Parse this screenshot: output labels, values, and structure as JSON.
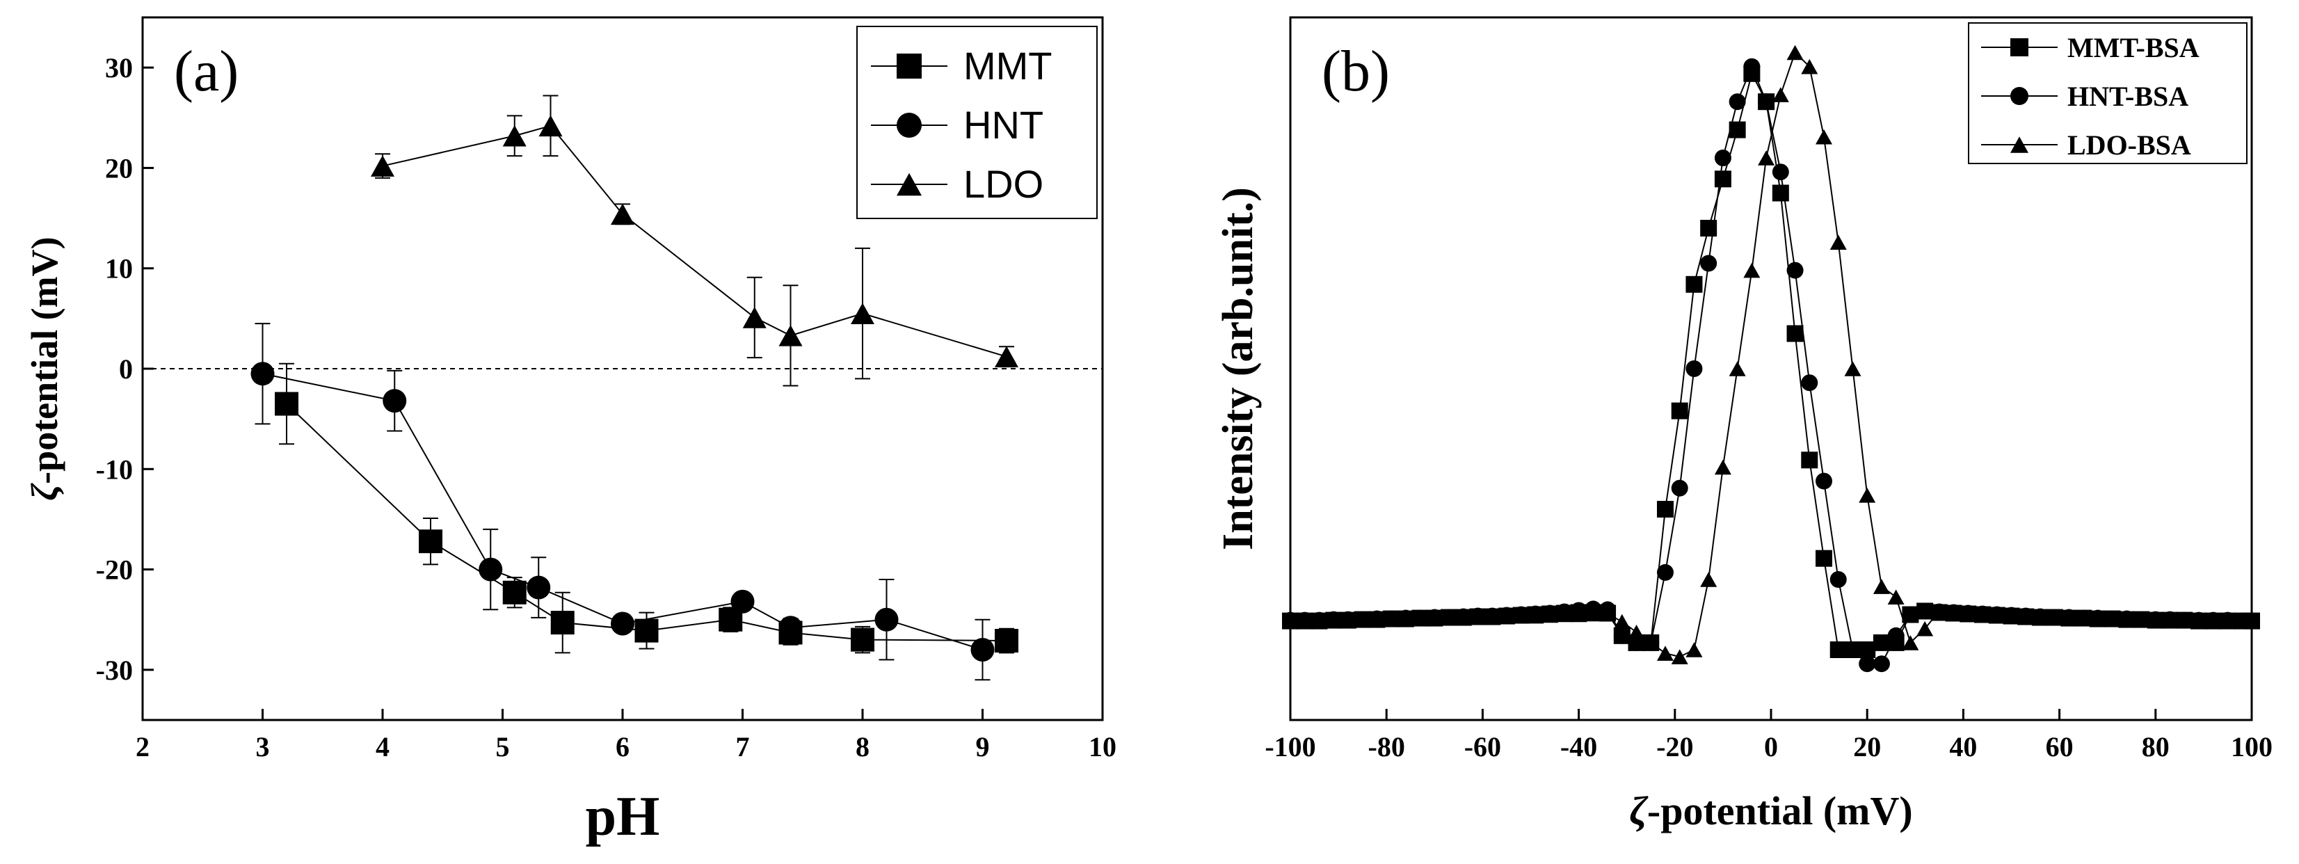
{
  "chart_data": [
    {
      "type": "line",
      "panel_label": "(a)",
      "xlabel": "pH",
      "ylabel_symbol": "ζ",
      "ylabel_text": "-potential (mV)",
      "xlim": [
        2,
        10
      ],
      "ylim": [
        -35,
        35
      ],
      "xticks": [
        2,
        3,
        4,
        5,
        6,
        7,
        8,
        9,
        10
      ],
      "yticks": [
        -30,
        -20,
        -10,
        0,
        10,
        20,
        30
      ],
      "zero_line": true,
      "legend": "top-right",
      "series": [
        {
          "name": "MMT",
          "marker": "square",
          "x": [
            3.2,
            4.4,
            5.1,
            5.5,
            6.2,
            6.9,
            7.4,
            8.0,
            9.2
          ],
          "y": [
            -3.5,
            -17.2,
            -22.3,
            -25.3,
            -26.1,
            -25.0,
            -26.3,
            -27.0,
            -27.1
          ],
          "err": [
            4.0,
            2.3,
            1.5,
            3.0,
            1.8,
            1.2,
            1.2,
            1.3,
            1.2
          ]
        },
        {
          "name": "HNT",
          "marker": "circle",
          "x": [
            3.0,
            4.1,
            4.9,
            5.3,
            6.0,
            7.0,
            7.4,
            8.2,
            9.0
          ],
          "y": [
            -0.5,
            -3.2,
            -20.0,
            -21.8,
            -25.4,
            -23.2,
            -25.8,
            -25.0,
            -28.0
          ],
          "err": [
            5.0,
            3.0,
            4.0,
            3.0,
            0.8,
            0.8,
            0.9,
            4.0,
            3.0
          ]
        },
        {
          "name": "LDO",
          "marker": "triangle",
          "x": [
            4.0,
            5.1,
            5.4,
            6.0,
            7.1,
            7.4,
            8.0,
            9.2
          ],
          "y": [
            20.2,
            23.2,
            24.2,
            15.4,
            5.1,
            3.3,
            5.5,
            1.2
          ],
          "err": [
            1.2,
            2.0,
            3.0,
            1.0,
            4.0,
            5.0,
            6.5,
            1.0
          ]
        }
      ]
    },
    {
      "type": "line",
      "panel_label": "(b)",
      "xlabel_symbol": "ζ",
      "xlabel_text": "-potential (mV)",
      "ylabel": "Intensity (arb.unit.)",
      "xlim": [
        -100,
        100
      ],
      "ylim": [
        0,
        1
      ],
      "xticks": [
        -100,
        -80,
        -60,
        -40,
        -20,
        0,
        20,
        40,
        60,
        80,
        100
      ],
      "yticks": [],
      "legend": "top-right",
      "series": [
        {
          "name": "MMT-BSA",
          "marker": "square",
          "x": [
            -100,
            -97,
            -94,
            -91,
            -88,
            -85,
            -82,
            -79,
            -76,
            -73,
            -70,
            -67,
            -64,
            -61,
            -58,
            -55,
            -52,
            -49,
            -46,
            -43,
            -40,
            -37,
            -34,
            -31,
            -28,
            -25,
            -22,
            -19,
            -16,
            -13,
            -10,
            -7,
            -4,
            -1,
            2,
            5,
            8,
            11,
            14,
            17,
            20,
            23,
            26,
            29,
            32,
            35,
            38,
            41,
            44,
            47,
            50,
            53,
            56,
            59,
            62,
            65,
            68,
            71,
            74,
            77,
            80,
            83,
            86,
            89,
            92,
            95,
            98,
            100
          ],
          "y": [
            0.141,
            0.141,
            0.141,
            0.142,
            0.142,
            0.143,
            0.143,
            0.144,
            0.144,
            0.145,
            0.145,
            0.146,
            0.146,
            0.147,
            0.147,
            0.148,
            0.149,
            0.15,
            0.151,
            0.152,
            0.153,
            0.153,
            0.152,
            0.12,
            0.11,
            0.11,
            0.3,
            0.44,
            0.62,
            0.7,
            0.77,
            0.84,
            0.92,
            0.88,
            0.75,
            0.55,
            0.37,
            0.23,
            0.1,
            0.1,
            0.1,
            0.11,
            0.11,
            0.15,
            0.155,
            0.153,
            0.152,
            0.151,
            0.15,
            0.149,
            0.148,
            0.147,
            0.146,
            0.146,
            0.145,
            0.145,
            0.144,
            0.144,
            0.143,
            0.143,
            0.142,
            0.142,
            0.142,
            0.141,
            0.141,
            0.141,
            0.141,
            0.141
          ]
        },
        {
          "name": "HNT-BSA",
          "marker": "circle",
          "x": [
            -100,
            -97,
            -94,
            -91,
            -88,
            -85,
            -82,
            -79,
            -76,
            -73,
            -70,
            -67,
            -64,
            -61,
            -58,
            -55,
            -52,
            -49,
            -46,
            -43,
            -40,
            -37,
            -34,
            -31,
            -28,
            -25,
            -22,
            -19,
            -16,
            -13,
            -10,
            -7,
            -4,
            -1,
            2,
            5,
            8,
            11,
            14,
            17,
            20,
            23,
            26,
            29,
            32,
            35,
            38,
            41,
            44,
            47,
            50,
            53,
            56,
            59,
            62,
            65,
            68,
            71,
            74,
            77,
            80,
            83,
            86,
            89,
            92,
            95,
            98,
            100
          ],
          "y": [
            0.142,
            0.142,
            0.142,
            0.143,
            0.143,
            0.143,
            0.144,
            0.144,
            0.145,
            0.145,
            0.146,
            0.146,
            0.147,
            0.148,
            0.148,
            0.149,
            0.15,
            0.151,
            0.152,
            0.154,
            0.156,
            0.158,
            0.157,
            0.12,
            0.11,
            0.11,
            0.21,
            0.33,
            0.5,
            0.65,
            0.8,
            0.88,
            0.93,
            0.88,
            0.78,
            0.64,
            0.48,
            0.34,
            0.2,
            0.1,
            0.08,
            0.08,
            0.12,
            0.15,
            0.155,
            0.154,
            0.153,
            0.152,
            0.151,
            0.15,
            0.149,
            0.148,
            0.147,
            0.146,
            0.146,
            0.145,
            0.145,
            0.144,
            0.144,
            0.143,
            0.143,
            0.143,
            0.142,
            0.142,
            0.142,
            0.142,
            0.141,
            0.141
          ]
        },
        {
          "name": "LDO-BSA",
          "marker": "triangle",
          "x": [
            -100,
            -97,
            -94,
            -91,
            -88,
            -85,
            -82,
            -79,
            -76,
            -73,
            -70,
            -67,
            -64,
            -61,
            -58,
            -55,
            -52,
            -49,
            -46,
            -43,
            -40,
            -37,
            -34,
            -31,
            -28,
            -25,
            -22,
            -19,
            -16,
            -13,
            -10,
            -7,
            -4,
            -1,
            2,
            5,
            8,
            11,
            14,
            17,
            20,
            23,
            26,
            29,
            32,
            35,
            38,
            41,
            44,
            47,
            50,
            53,
            56,
            59,
            62,
            65,
            68,
            71,
            74,
            77,
            80,
            83,
            86,
            89,
            92,
            95,
            98,
            100
          ],
          "y": [
            0.141,
            0.141,
            0.141,
            0.142,
            0.142,
            0.142,
            0.143,
            0.143,
            0.144,
            0.144,
            0.145,
            0.145,
            0.146,
            0.146,
            0.147,
            0.147,
            0.148,
            0.148,
            0.149,
            0.15,
            0.15,
            0.151,
            0.151,
            0.14,
            0.125,
            0.11,
            0.095,
            0.09,
            0.1,
            0.2,
            0.36,
            0.5,
            0.64,
            0.8,
            0.89,
            0.95,
            0.93,
            0.83,
            0.68,
            0.5,
            0.32,
            0.19,
            0.175,
            0.11,
            0.13,
            0.155,
            0.153,
            0.152,
            0.151,
            0.15,
            0.149,
            0.148,
            0.147,
            0.146,
            0.146,
            0.145,
            0.145,
            0.144,
            0.144,
            0.143,
            0.143,
            0.142,
            0.142,
            0.142,
            0.141,
            0.141,
            0.141,
            0.141
          ]
        }
      ]
    }
  ]
}
